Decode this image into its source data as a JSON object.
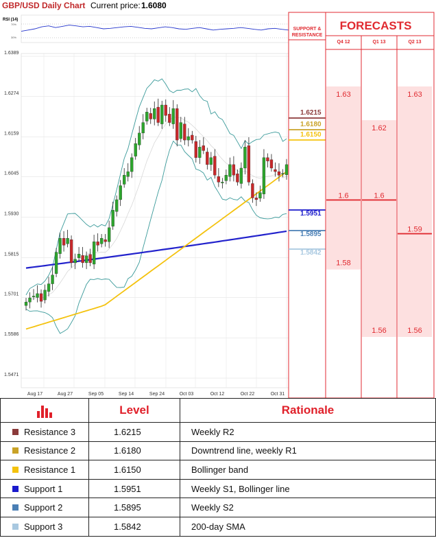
{
  "title": "GBP/USD Daily Chart",
  "current_price_label": "Current price:",
  "current_price": "1.6080",
  "rsi_label": "RSI (14)",
  "rsi_ticks": [
    "70%",
    "30%"
  ],
  "support_resistance_title": [
    "SUPPORT &",
    "RESISTANCE"
  ],
  "forecasts_title": "FORECASTS",
  "table": {
    "headers": [
      "",
      "Level",
      "Rationale"
    ],
    "rows": [
      {
        "name": "Resistance 3",
        "level": "1.6215",
        "rationale": "Weekly R2",
        "color": "#8b3a3a"
      },
      {
        "name": "Resistance 2",
        "level": "1.6180",
        "rationale": "Downtrend line, weekly R1",
        "color": "#c9a227"
      },
      {
        "name": "Resistance 1",
        "level": "1.6150",
        "rationale": "Bollinger band",
        "color": "#f4c20d"
      },
      {
        "name": "Support 1",
        "level": "1.5951",
        "rationale": "Weekly S1, Bollinger line",
        "color": "#1a1acc"
      },
      {
        "name": "Support 2",
        "level": "1.5895",
        "rationale": "Weekly S2",
        "color": "#4a7fb5"
      },
      {
        "name": "Support 3",
        "level": "1.5842",
        "rationale": "200-day SMA",
        "color": "#a8c8e0"
      }
    ]
  },
  "chart_data": [
    {
      "type": "candlestick",
      "title": "GBP/USD Daily Chart",
      "ylim": [
        1.5471,
        1.6389
      ],
      "y_ticks": [
        "1.6389",
        "1.6274",
        "1.6159",
        "1.6045",
        "1.5930",
        "1.5815",
        "1.5701",
        "1.5586",
        "1.5471"
      ],
      "x_ticks": [
        "Aug 17",
        "Aug 27",
        "Sep 05",
        "Sep 14",
        "Sep 24",
        "Oct 03",
        "Oct 12",
        "Oct 22",
        "Oct 31"
      ],
      "closes": [
        1.5688,
        1.57,
        1.5705,
        1.5712,
        1.569,
        1.5722,
        1.574,
        1.5765,
        1.583,
        1.587,
        1.585,
        1.587,
        1.58,
        1.581,
        1.5825,
        1.58,
        1.582,
        1.58,
        1.586,
        1.585,
        1.587,
        1.586,
        1.59,
        1.595,
        1.598,
        1.602,
        1.605,
        1.606,
        1.61,
        1.614,
        1.617,
        1.62,
        1.623,
        1.621,
        1.624,
        1.62,
        1.625,
        1.622,
        1.62,
        1.624,
        1.615,
        1.62,
        1.615,
        1.616,
        1.615,
        1.61,
        1.613,
        1.612,
        1.608,
        1.61,
        1.605,
        1.603,
        1.603,
        1.605,
        1.608,
        1.605,
        1.603,
        1.607,
        1.613,
        1.603,
        1.5985,
        1.598,
        1.6,
        1.61,
        1.609,
        1.607,
        1.606,
        1.605,
        1.6055,
        1.608
      ],
      "series": [
        {
          "name": "200-day SMA",
          "color": "#2222cc",
          "start": 1.5785,
          "end": 1.589
        },
        {
          "name": "50-day SMA",
          "color": "#f4c20d",
          "start": 1.5611,
          "end": 1.606
        },
        {
          "name": "Bollinger bands",
          "color": "#3a9a9a"
        }
      ]
    },
    {
      "type": "bar",
      "title": "FORECASTS",
      "categories": [
        "Q4 12",
        "Q1 13",
        "Q2 13"
      ],
      "series": [
        {
          "name": "high",
          "values": [
            1.63,
            1.62,
            1.63
          ]
        },
        {
          "name": "median",
          "values": [
            1.6,
            1.6,
            1.59
          ]
        },
        {
          "name": "low",
          "values": [
            1.58,
            1.56,
            1.56
          ]
        }
      ],
      "labels": {
        "high": [
          "1.63",
          "1.62",
          "1.63"
        ],
        "median": [
          "1.6",
          "1.6",
          "1.59"
        ],
        "low": [
          "1.58",
          "1.56",
          "1.56"
        ]
      }
    }
  ]
}
